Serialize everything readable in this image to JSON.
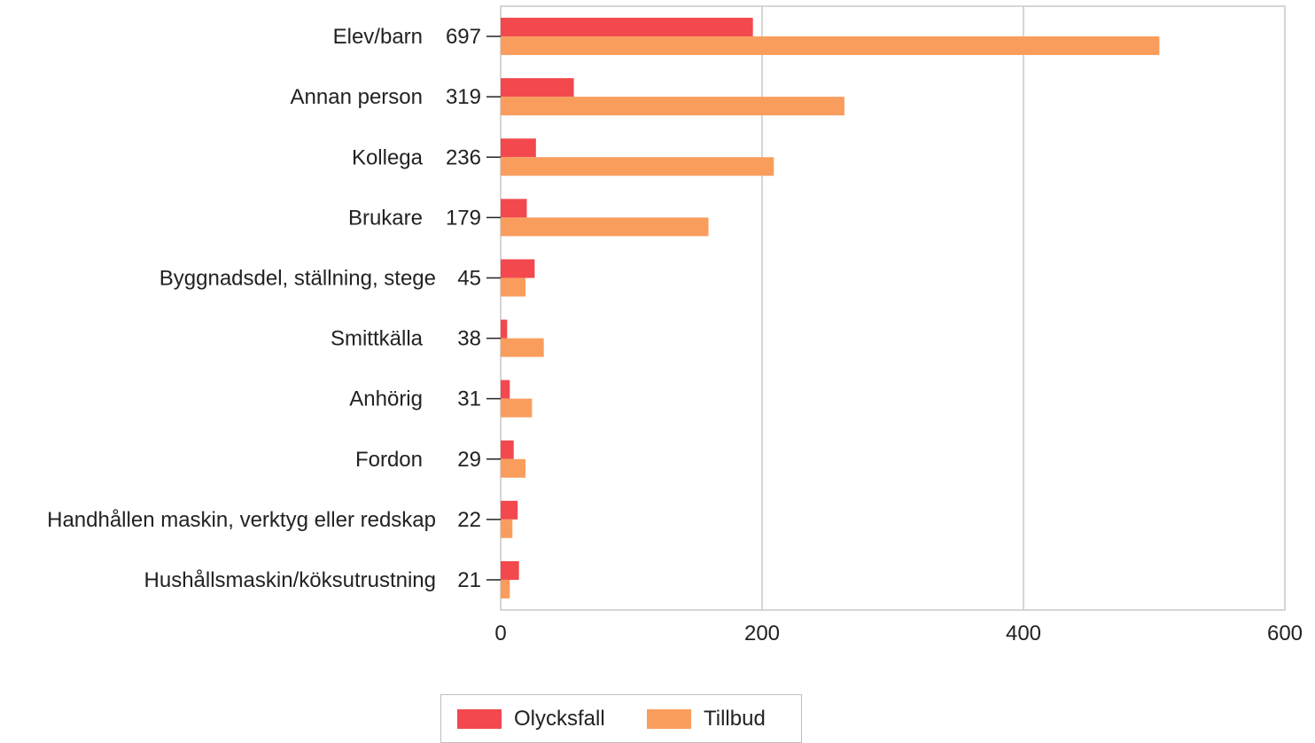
{
  "chart_data": {
    "type": "bar",
    "orientation": "horizontal",
    "categories": [
      "Elev/barn",
      "Annan person",
      "Kollega",
      "Brukare",
      "Byggnadsdel, ställning, stege",
      "Smittkälla",
      "Anhörig",
      "Fordon",
      "Handhållen maskin, verktyg eller redskap",
      "Hushållsmaskin/köksutrustning"
    ],
    "totals": [
      "697",
      "319",
      "236",
      "179",
      "45",
      "38",
      "31",
      "29",
      "22",
      "21"
    ],
    "series": [
      {
        "name": "Olycksfall",
        "color": "#f2484e",
        "values": [
          193,
          56,
          27,
          20,
          26,
          5,
          7,
          10,
          13,
          14
        ]
      },
      {
        "name": "Tillbud",
        "color": "#f99d5d",
        "values": [
          504,
          263,
          209,
          159,
          19,
          33,
          24,
          19,
          9,
          7
        ]
      }
    ],
    "xlim": [
      0,
      600
    ],
    "xticks": [
      "0",
      "200",
      "400",
      "600"
    ],
    "grid": true,
    "legend_position": "bottom"
  }
}
